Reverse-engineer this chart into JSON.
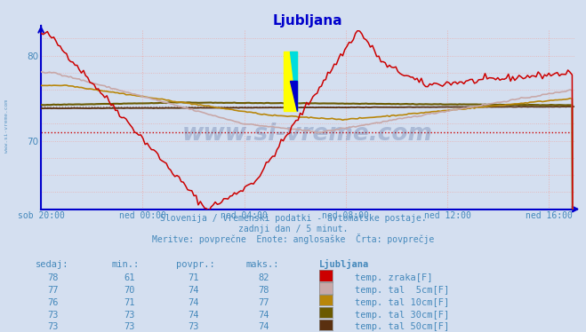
{
  "title": "Ljubljana",
  "title_color": "#0000cc",
  "bg_color": "#d4dff0",
  "plot_bg_color": "#d4dff0",
  "xlabel_ticks": [
    "sob 20:00",
    "ned 00:00",
    "ned 04:00",
    "ned 08:00",
    "ned 12:00",
    "ned 16:00"
  ],
  "x_tick_positions": [
    0,
    4,
    8,
    12,
    16,
    20
  ],
  "ylim_min": 62,
  "ylim_max": 83,
  "yticks": [
    70,
    80
  ],
  "ytick_labels": [
    "70",
    "80"
  ],
  "hours_total": 21,
  "red_hline": 71.0,
  "avg_hline": 74.0,
  "grid_color": "#e8b0b0",
  "series_colors": {
    "temp_zraka": "#cc0000",
    "temp_tal_5cm": "#c8a8a8",
    "temp_tal_10cm": "#b8860a",
    "temp_tal_30cm": "#6b5a00",
    "temp_tal_50cm": "#5a3010"
  },
  "footer_lines": [
    "Slovenija / vremenski podatki - avtomatske postaje.",
    "zadnji dan / 5 minut.",
    "Meritve: povprečne  Enote: anglosaške  Črta: povprečje"
  ],
  "footer_color": "#4488bb",
  "table_header": [
    "sedaj:",
    "min.:",
    "povpr.:",
    "maks.:",
    "Ljubljana"
  ],
  "table_color": "#4488bb",
  "table_data": [
    [
      78,
      61,
      71,
      82,
      "temp. zraka[F]",
      "#cc0000"
    ],
    [
      77,
      70,
      74,
      78,
      "temp. tal  5cm[F]",
      "#c8a8a8"
    ],
    [
      76,
      71,
      74,
      77,
      "temp. tal 10cm[F]",
      "#b8860a"
    ],
    [
      73,
      73,
      74,
      74,
      "temp. tal 30cm[F]",
      "#6b5a00"
    ],
    [
      73,
      73,
      73,
      74,
      "temp. tal 50cm[F]",
      "#5a3010"
    ]
  ],
  "watermark": "www.si-vreme.com",
  "watermark_color": "#1a3a7a",
  "watermark_alpha": 0.22,
  "axis_color": "#0000cc",
  "tick_color": "#4488bb"
}
